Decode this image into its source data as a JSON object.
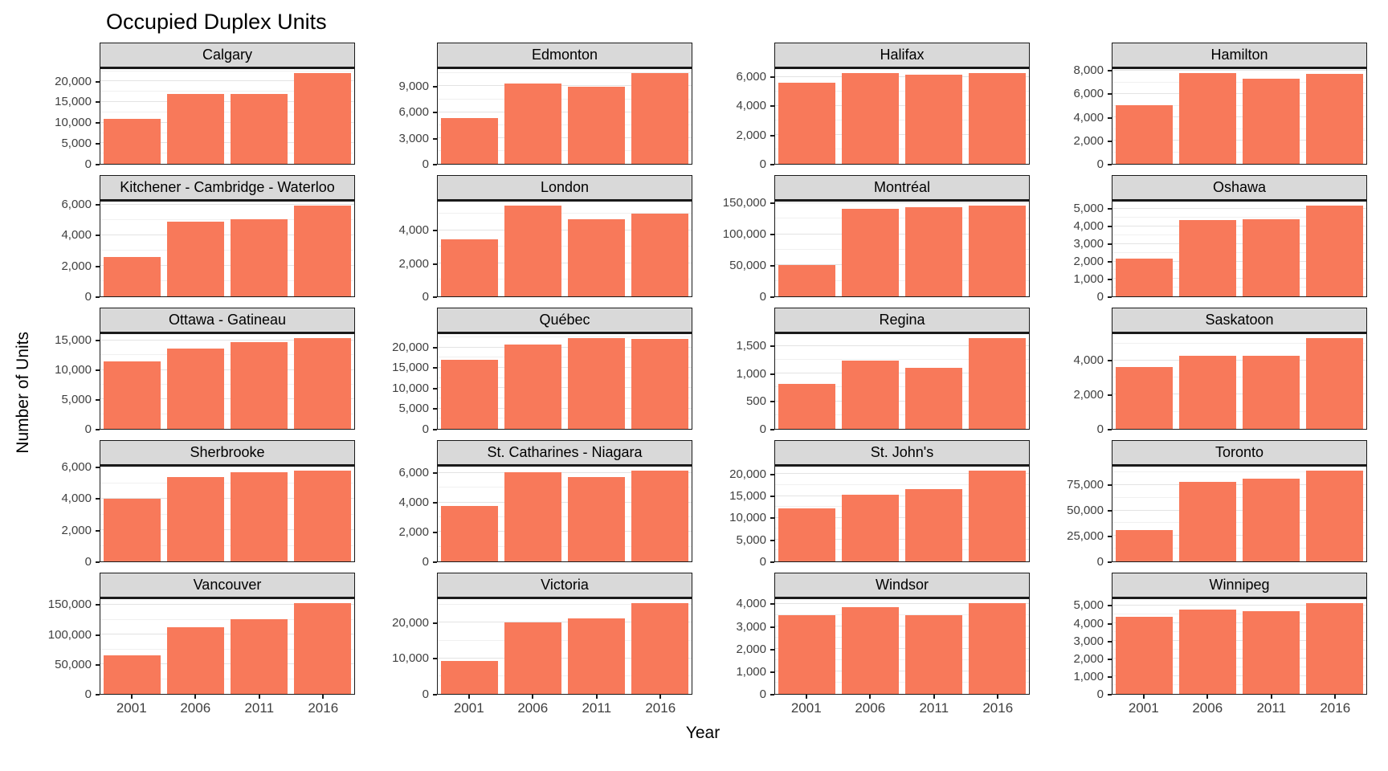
{
  "title": "Occupied Duplex Units",
  "y_axis_label": "Number of Units",
  "x_axis_label": "Year",
  "colors": {
    "bar": "#f8795a",
    "strip_background": "#d9d9d9",
    "panel_border": "#1a1a1a",
    "grid_major": "#e3e3e3",
    "grid_minor": "#f0f0f0",
    "axis_text": "#404040"
  },
  "chart_data": {
    "type": "bar",
    "title": "Occupied Duplex Units",
    "xlabel": "Year",
    "ylabel": "Number of Units",
    "grid": true,
    "legend": "none",
    "facet_layout": {
      "rows": 5,
      "cols": 4,
      "scales": "free_y"
    },
    "categories": [
      "2001",
      "2006",
      "2011",
      "2016"
    ],
    "facets": [
      {
        "name": "Calgary",
        "values": [
          11000,
          17000,
          17000,
          22000
        ],
        "yticks": [
          0,
          5000,
          10000,
          15000,
          20000
        ],
        "ymax": 23000
      },
      {
        "name": "Edmonton",
        "values": [
          5300,
          9300,
          8950,
          10500
        ],
        "yticks": [
          0,
          3000,
          6000,
          9000
        ],
        "ymax": 11000
      },
      {
        "name": "Halifax",
        "values": [
          5600,
          6250,
          6150,
          6250
        ],
        "yticks": [
          0,
          2000,
          4000,
          6000
        ],
        "ymax": 6530
      },
      {
        "name": "Hamilton",
        "values": [
          5050,
          7800,
          7300,
          7750
        ],
        "yticks": [
          0,
          2000,
          4000,
          6000,
          8000
        ],
        "ymax": 8150
      },
      {
        "name": "Kitchener - Cambridge - Waterloo",
        "values": [
          2600,
          4900,
          5050,
          5950
        ],
        "yticks": [
          0,
          2000,
          4000,
          6000
        ],
        "ymax": 6220
      },
      {
        "name": "London",
        "values": [
          3450,
          5500,
          4700,
          5000
        ],
        "yticks": [
          0,
          2000,
          4000
        ],
        "ymax": 5750
      },
      {
        "name": "Montréal",
        "values": [
          50000,
          141000,
          144000,
          146000
        ],
        "yticks": [
          0,
          50000,
          100000,
          150000
        ],
        "ymax": 152600
      },
      {
        "name": "Oshawa",
        "values": [
          2150,
          4350,
          4400,
          5200
        ],
        "yticks": [
          0,
          1000,
          2000,
          3000,
          4000,
          5000
        ],
        "ymax": 5430
      },
      {
        "name": "Ottawa - Gatineau",
        "values": [
          11500,
          13700,
          14700,
          15400
        ],
        "yticks": [
          0,
          5000,
          10000,
          15000
        ],
        "ymax": 16100
      },
      {
        "name": "Québec",
        "values": [
          17000,
          20700,
          22300,
          22200
        ],
        "yticks": [
          0,
          5000,
          10000,
          15000,
          20000
        ],
        "ymax": 23300
      },
      {
        "name": "Regina",
        "values": [
          820,
          1230,
          1110,
          1640
        ],
        "yticks": [
          0,
          500,
          1000,
          1500
        ],
        "ymax": 1715
      },
      {
        "name": "Saskatoon",
        "values": [
          3600,
          4250,
          4250,
          5300
        ],
        "yticks": [
          0,
          2000,
          4000
        ],
        "ymax": 5540
      },
      {
        "name": "Sherbrooke",
        "values": [
          4000,
          5400,
          5700,
          5800
        ],
        "yticks": [
          0,
          2000,
          4000,
          6000
        ],
        "ymax": 6060
      },
      {
        "name": "St. Catharines - Niagara",
        "values": [
          3750,
          6050,
          5700,
          6150
        ],
        "yticks": [
          0,
          2000,
          4000,
          6000
        ],
        "ymax": 6430
      },
      {
        "name": "St. John's",
        "values": [
          12200,
          15300,
          16600,
          20800
        ],
        "yticks": [
          0,
          5000,
          10000,
          15000,
          20000
        ],
        "ymax": 21740
      },
      {
        "name": "Toronto",
        "values": [
          31000,
          78000,
          81000,
          89000
        ],
        "yticks": [
          0,
          25000,
          50000,
          75000
        ],
        "ymax": 93000
      },
      {
        "name": "Vancouver",
        "values": [
          65000,
          113000,
          126000,
          153000
        ],
        "yticks": [
          0,
          50000,
          100000,
          150000
        ],
        "ymax": 159900
      },
      {
        "name": "Victoria",
        "values": [
          9200,
          20200,
          21300,
          25500
        ],
        "yticks": [
          0,
          10000,
          20000
        ],
        "ymax": 26650
      },
      {
        "name": "Windsor",
        "values": [
          3500,
          3880,
          3500,
          4050
        ],
        "yticks": [
          0,
          1000,
          2000,
          3000,
          4000
        ],
        "ymax": 4230
      },
      {
        "name": "Winnipeg",
        "values": [
          4400,
          4800,
          4700,
          5150
        ],
        "yticks": [
          0,
          1000,
          2000,
          3000,
          4000,
          5000
        ],
        "ymax": 5380
      }
    ]
  }
}
